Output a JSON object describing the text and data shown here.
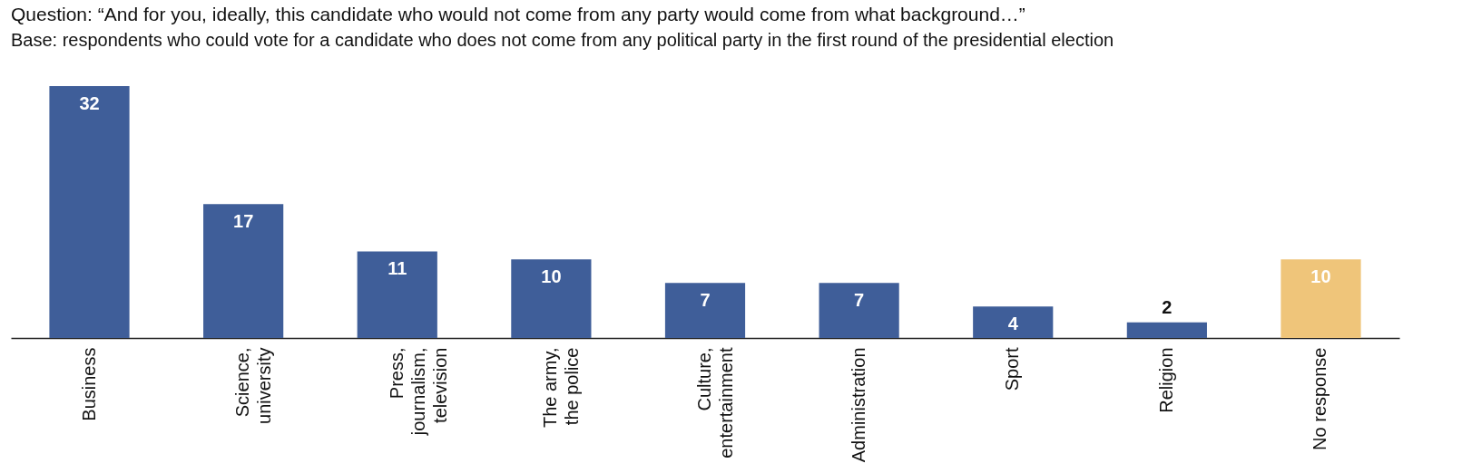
{
  "chart_data": {
    "type": "bar",
    "title": "Question: “And for you, ideally, this candidate who would not come from any party would come from what background…”",
    "subtitle": "Base: respondents who could vote for a candidate who does not come from any political party in the first round of the presidential election",
    "categories": [
      "Business",
      "Science, university",
      "Press, journalism, television",
      "The army, the police",
      "Culture, entertainment",
      "Administration",
      "Sport",
      "Religion",
      "No response"
    ],
    "values": [
      32,
      17,
      11,
      10,
      7,
      7,
      4,
      2,
      10
    ],
    "colors": [
      "#3f5e99",
      "#3f5e99",
      "#3f5e99",
      "#3f5e99",
      "#3f5e99",
      "#3f5e99",
      "#3f5e99",
      "#3f5e99",
      "#efc57a"
    ],
    "data_labels": true
  }
}
